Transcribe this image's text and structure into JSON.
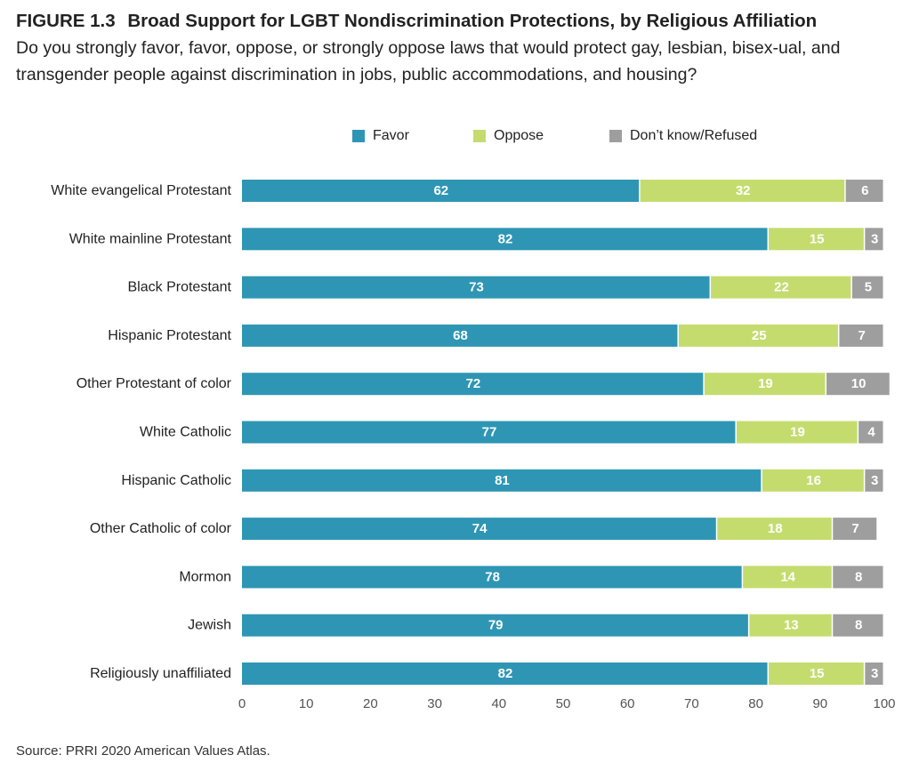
{
  "figure": {
    "number": "FIGURE 1.3",
    "title": "Broad Support for LGBT Nondiscrimination Protections, by Religious Affiliation",
    "subtitle": "Do you strongly favor, favor, oppose, or strongly oppose laws that would protect gay, lesbian, bisex-ual, and transgender people against discrimination in jobs, public accommodations, and housing?",
    "source": "Source: PRRI 2020 American Values Atlas."
  },
  "chart_data": {
    "type": "bar",
    "orientation": "horizontal",
    "stacked": true,
    "categories": [
      "White evangelical Protestant",
      "White mainline Protestant",
      "Black Protestant",
      "Hispanic Protestant",
      "Other Protestant of color",
      "White Catholic",
      "Hispanic Catholic",
      "Other Catholic of color",
      "Mormon",
      "Jewish",
      "Religiously unaffiliated"
    ],
    "series": [
      {
        "name": "Favor",
        "color": "#2e96b4",
        "values": [
          62,
          82,
          73,
          68,
          72,
          77,
          81,
          74,
          78,
          79,
          82
        ]
      },
      {
        "name": "Oppose",
        "color": "#c4dc6e",
        "values": [
          32,
          15,
          22,
          25,
          19,
          19,
          16,
          18,
          14,
          13,
          15
        ]
      },
      {
        "name": "Don’t know/Refused",
        "color": "#9e9e9e",
        "values": [
          6,
          3,
          5,
          7,
          10,
          4,
          3,
          7,
          8,
          8,
          3
        ]
      }
    ],
    "xlim": [
      0,
      100
    ],
    "xticks": [
      0,
      10,
      20,
      30,
      40,
      50,
      60,
      70,
      80,
      90,
      100
    ],
    "legend_position": "top",
    "grid": false,
    "data_labels": true
  }
}
